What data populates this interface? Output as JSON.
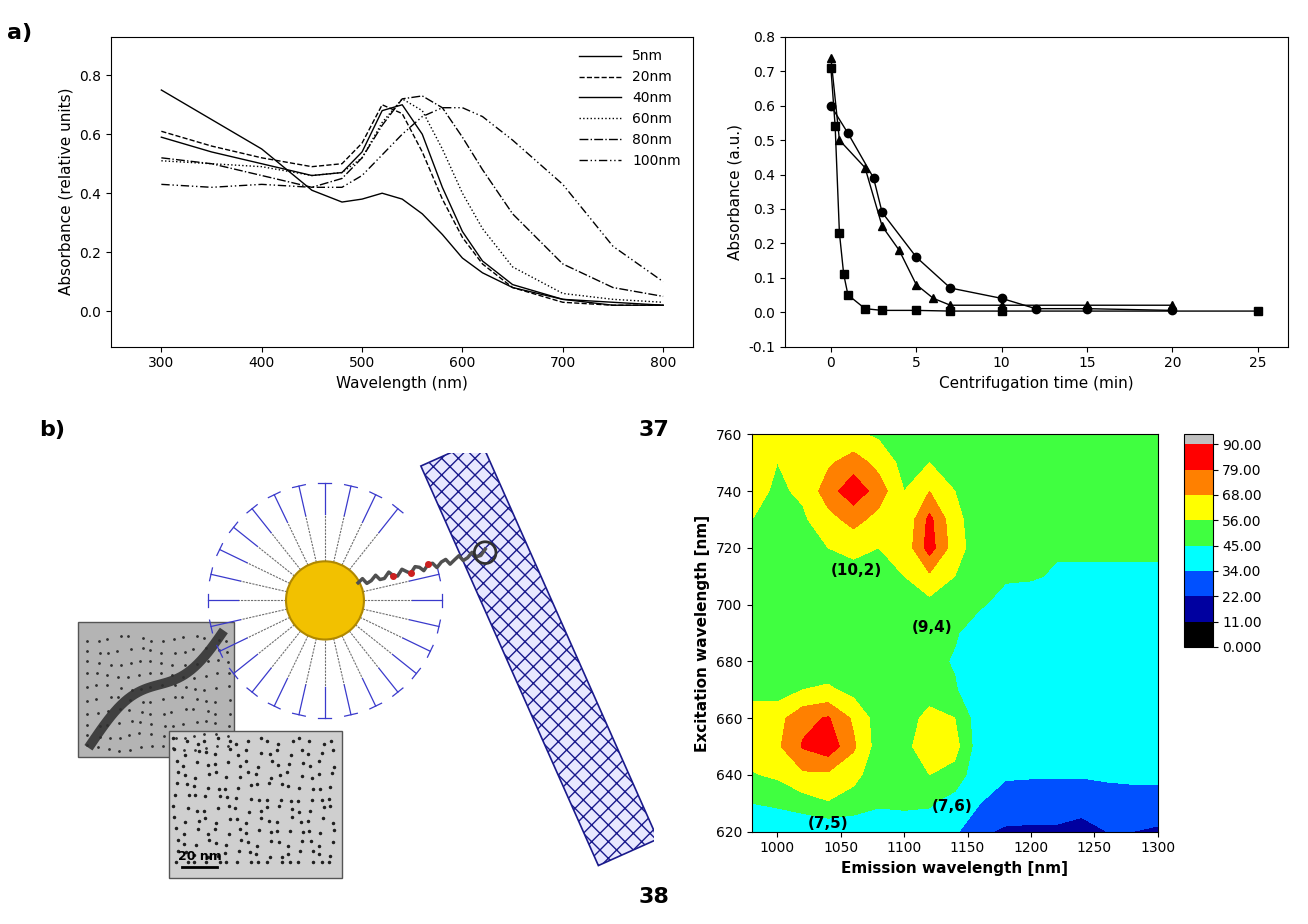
{
  "chart_data": [
    {
      "type": "line",
      "xlabel": "Wavelength (nm)",
      "ylabel": "Absorbance (relative units)",
      "x": [
        300,
        350,
        400,
        450,
        480,
        500,
        520,
        540,
        560,
        580,
        600,
        620,
        650,
        700,
        750,
        800
      ],
      "series": [
        {
          "name": "5nm",
          "color": "#000000",
          "line_style": "solid",
          "values": [
            0.75,
            0.65,
            0.55,
            0.41,
            0.37,
            0.38,
            0.4,
            0.38,
            0.33,
            0.26,
            0.18,
            0.13,
            0.08,
            0.04,
            0.03,
            0.02
          ]
        },
        {
          "name": "20nm",
          "color": "#000000",
          "line_style": "dashed",
          "values": [
            0.61,
            0.56,
            0.52,
            0.49,
            0.5,
            0.57,
            0.7,
            0.67,
            0.54,
            0.38,
            0.25,
            0.16,
            0.08,
            0.03,
            0.02,
            0.02
          ]
        },
        {
          "name": "40nm",
          "color": "#000000",
          "line_style": "solid",
          "values": [
            0.59,
            0.54,
            0.5,
            0.46,
            0.47,
            0.54,
            0.68,
            0.7,
            0.6,
            0.42,
            0.27,
            0.17,
            0.09,
            0.04,
            0.02,
            0.02
          ]
        },
        {
          "name": "60nm",
          "color": "#000000",
          "line_style": "dotted",
          "values": [
            0.51,
            0.5,
            0.49,
            0.46,
            0.47,
            0.52,
            0.64,
            0.72,
            0.68,
            0.55,
            0.4,
            0.28,
            0.15,
            0.06,
            0.04,
            0.03
          ]
        },
        {
          "name": "80nm",
          "color": "#000000",
          "line_style": "dashdot",
          "values": [
            0.52,
            0.5,
            0.46,
            0.42,
            0.45,
            0.52,
            0.63,
            0.72,
            0.73,
            0.69,
            0.59,
            0.48,
            0.33,
            0.16,
            0.08,
            0.05
          ]
        },
        {
          "name": "100nm",
          "color": "#000000",
          "line_style": "dashdotdot",
          "values": [
            0.43,
            0.42,
            0.43,
            0.42,
            0.42,
            0.46,
            0.53,
            0.6,
            0.66,
            0.69,
            0.69,
            0.66,
            0.58,
            0.43,
            0.22,
            0.1
          ]
        }
      ],
      "xlim": [
        250,
        830
      ],
      "xticks": [
        300,
        400,
        500,
        600,
        700,
        800
      ],
      "ylim": [
        -0.12,
        0.93
      ],
      "yticks": [
        0.0,
        0.2,
        0.4,
        0.6,
        0.8
      ],
      "legend": "upper right"
    },
    {
      "type": "line",
      "xlabel": "Centrifugation time (min)",
      "ylabel": "Absorbance (a.u.)",
      "series": [
        {
          "color": "#000000",
          "marker": "square",
          "line_style": "solid",
          "x": [
            0,
            0.25,
            0.5,
            0.75,
            1,
            2,
            3,
            5,
            7,
            10,
            25
          ],
          "values": [
            0.71,
            0.54,
            0.23,
            0.11,
            0.05,
            0.01,
            0.005,
            0.005,
            0.003,
            0.003,
            0.003
          ]
        },
        {
          "color": "#000000",
          "marker": "circle",
          "line_style": "solid",
          "x": [
            0,
            1,
            2.5,
            3,
            5,
            7,
            10,
            12,
            15,
            20
          ],
          "values": [
            0.6,
            0.52,
            0.39,
            0.29,
            0.16,
            0.07,
            0.04,
            0.01,
            0.01,
            0.005
          ]
        },
        {
          "color": "#000000",
          "marker": "triangle",
          "line_style": "solid",
          "x": [
            0,
            0.5,
            2,
            3,
            4,
            5,
            6,
            7,
            10,
            15,
            20
          ],
          "values": [
            0.74,
            0.5,
            0.42,
            0.25,
            0.18,
            0.08,
            0.04,
            0.02,
            0.02,
            0.02,
            0.02
          ]
        }
      ],
      "xlim": [
        -2.7,
        26.8
      ],
      "xticks": [
        0,
        5,
        10,
        15,
        20,
        25
      ],
      "ylim": [
        -0.1,
        0.8
      ],
      "yticks": [
        -0.1,
        0.0,
        0.1,
        0.2,
        0.3,
        0.4,
        0.5,
        0.6,
        0.7,
        0.8
      ]
    },
    {
      "type": "heatmap",
      "xlabel": "Emission wavelength [nm]",
      "ylabel": "Excitation wavelength [nm]",
      "x": [
        980,
        1000,
        1020,
        1040,
        1060,
        1080,
        1100,
        1120,
        1140,
        1160,
        1180,
        1200,
        1220,
        1240,
        1260,
        1280,
        1300
      ],
      "y": [
        620,
        630,
        640,
        650,
        660,
        670,
        680,
        690,
        700,
        710,
        720,
        730,
        740,
        750,
        760
      ],
      "cells": [
        [
          40,
          40,
          36,
          36,
          38,
          40,
          42,
          40,
          36,
          24,
          20,
          20,
          20,
          18,
          22,
          22,
          20
        ],
        [
          45,
          46,
          50,
          55,
          50,
          46,
          46,
          46,
          40,
          34,
          30,
          28,
          28,
          26,
          28,
          30,
          30
        ],
        [
          55,
          58,
          66,
          66,
          60,
          48,
          48,
          56,
          52,
          36,
          35,
          35,
          35,
          35,
          36,
          36,
          36
        ],
        [
          62,
          66,
          80,
          86,
          70,
          50,
          52,
          64,
          60,
          38,
          36,
          36,
          36,
          36,
          36,
          36,
          36
        ],
        [
          62,
          64,
          76,
          80,
          66,
          50,
          50,
          60,
          56,
          38,
          36,
          36,
          36,
          36,
          36,
          36,
          36
        ],
        [
          52,
          50,
          56,
          58,
          52,
          48,
          48,
          50,
          46,
          36,
          36,
          36,
          36,
          36,
          36,
          36,
          36
        ],
        [
          48,
          48,
          48,
          48,
          48,
          48,
          48,
          48,
          44,
          38,
          36,
          36,
          36,
          36,
          36,
          36,
          36
        ],
        [
          48,
          48,
          48,
          48,
          48,
          48,
          48,
          48,
          46,
          40,
          36,
          36,
          36,
          36,
          36,
          36,
          36
        ],
        [
          48,
          50,
          50,
          50,
          48,
          48,
          50,
          52,
          48,
          46,
          42,
          40,
          38,
          38,
          38,
          38,
          38
        ],
        [
          50,
          50,
          50,
          50,
          50,
          50,
          56,
          66,
          56,
          48,
          46,
          46,
          44,
          44,
          44,
          44,
          44
        ],
        [
          52,
          50,
          50,
          56,
          60,
          56,
          60,
          84,
          62,
          48,
          48,
          52,
          46,
          46,
          46,
          46,
          46
        ],
        [
          56,
          52,
          54,
          64,
          72,
          64,
          58,
          82,
          60,
          48,
          46,
          46,
          46,
          46,
          46,
          46,
          46
        ],
        [
          60,
          54,
          58,
          74,
          86,
          74,
          56,
          68,
          56,
          48,
          46,
          46,
          46,
          46,
          46,
          46,
          46
        ],
        [
          60,
          56,
          58,
          66,
          74,
          64,
          52,
          56,
          52,
          48,
          46,
          46,
          46,
          46,
          46,
          46,
          46
        ],
        [
          62,
          60,
          62,
          58,
          58,
          54,
          50,
          50,
          50,
          48,
          46,
          46,
          46,
          46,
          46,
          46,
          46
        ]
      ],
      "xlim": [
        980,
        1300
      ],
      "xticks": [
        1000,
        1050,
        1100,
        1150,
        1200,
        1250,
        1300
      ],
      "ylim": [
        620,
        760
      ],
      "yticks": [
        620,
        640,
        660,
        680,
        700,
        720,
        740,
        760
      ],
      "colorbar": {
        "ticks": [
          {
            "value": 0,
            "label": "0.000"
          },
          {
            "value": 11,
            "label": "11.00"
          },
          {
            "value": 22,
            "label": "22.00"
          },
          {
            "value": 34,
            "label": "34.00"
          },
          {
            "value": 45,
            "label": "45.00"
          },
          {
            "value": 56,
            "label": "56.00"
          },
          {
            "value": 68,
            "label": "68.00"
          },
          {
            "value": 79,
            "label": "79.00"
          },
          {
            "value": 90,
            "label": "90.00"
          }
        ],
        "colors": [
          "#000000",
          "#0000a0",
          "#0050ff",
          "#00ffff",
          "#40ff40",
          "#ffff00",
          "#ff8000",
          "#ff0000",
          "#c0c0c0"
        ]
      },
      "annotations": [
        {
          "text": "(10,2)",
          "x": 1062,
          "y": 712
        },
        {
          "text": "(9,4)",
          "x": 1122,
          "y": 692
        },
        {
          "text": "(7,5)",
          "x": 1040,
          "y": 623
        },
        {
          "text": "(7,6)",
          "x": 1138,
          "y": 629
        }
      ]
    }
  ],
  "panel_labels": [
    "a)",
    "b)"
  ],
  "figure_numbers": [
    "37",
    "38"
  ],
  "diagram": {
    "scale_bar_label": "20 nm"
  }
}
